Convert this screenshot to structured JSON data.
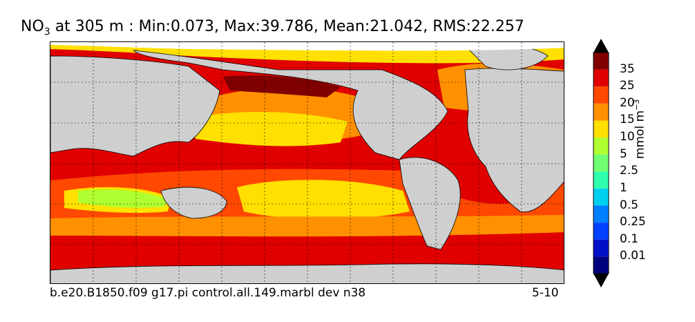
{
  "title": {
    "variable": "NO",
    "subscript": "3",
    "rest": " at 305 m : Min:0.073, Max:39.786, Mean:21.042, RMS:22.257"
  },
  "caption_left": "b.e20.B1850.f09 g17.pi control.all.149.marbl dev n38",
  "caption_right": "5-10",
  "colorbar": {
    "unit_base": "mmol m",
    "unit_exp": "−3",
    "levels": [
      "0.01",
      "0.1",
      "0.25",
      "0.5",
      "1",
      "2.5",
      "5",
      "10",
      "15",
      "20",
      "25",
      "35"
    ],
    "colors": [
      "#00007f",
      "#0010c8",
      "#0040ff",
      "#0080ff",
      "#00d0f0",
      "#30ffb0",
      "#70ff70",
      "#b0ff30",
      "#ffe000",
      "#ff9000",
      "#ff4800",
      "#e00000",
      "#800000"
    ],
    "extend": "both"
  },
  "chart_data": {
    "type": "heatmap",
    "title": "NO3 at 305 m : Min:0.073, Max:39.786, Mean:21.042, RMS:22.257",
    "variable": "NO3",
    "depth": "305 m",
    "stats": {
      "min": 0.073,
      "max": 39.786,
      "mean": 21.042,
      "rms": 22.257
    },
    "units": "mmol m-3",
    "contour_levels": [
      0.01,
      0.1,
      0.25,
      0.5,
      1,
      2.5,
      5,
      10,
      15,
      20,
      25,
      35
    ],
    "projection": "global lon-lat, continents masked grey",
    "grid": true
  }
}
